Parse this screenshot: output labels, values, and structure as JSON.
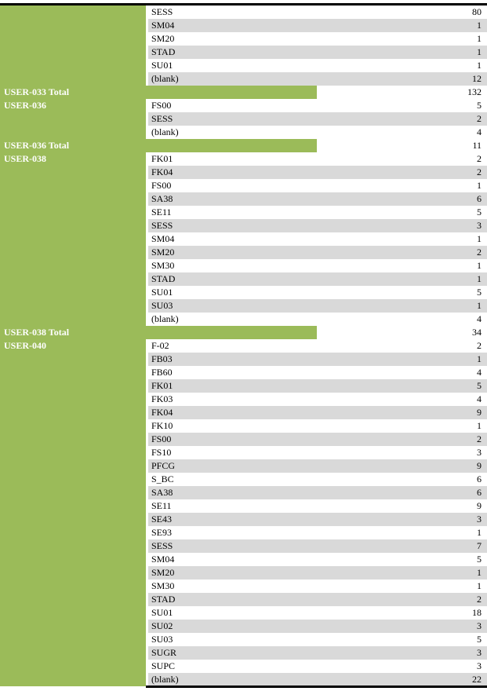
{
  "rows": [
    {
      "kind": "item",
      "label": "",
      "code": "SESS",
      "value": "80"
    },
    {
      "kind": "item",
      "label": "",
      "code": "SM04",
      "value": "1"
    },
    {
      "kind": "item",
      "label": "",
      "code": "SM20",
      "value": "1"
    },
    {
      "kind": "item",
      "label": "",
      "code": "STAD",
      "value": "1"
    },
    {
      "kind": "item",
      "label": "",
      "code": "SU01",
      "value": "1"
    },
    {
      "kind": "item",
      "label": "",
      "code": "(blank)",
      "value": "12"
    },
    {
      "kind": "total",
      "label": "USER-033 Total",
      "code": "",
      "value": "132"
    },
    {
      "kind": "item",
      "label": "USER-036",
      "code": "FS00",
      "value": "5"
    },
    {
      "kind": "item",
      "label": "",
      "code": "SESS",
      "value": "2"
    },
    {
      "kind": "item",
      "label": "",
      "code": "(blank)",
      "value": "4"
    },
    {
      "kind": "total",
      "label": "USER-036 Total",
      "code": "",
      "value": "11"
    },
    {
      "kind": "item",
      "label": "USER-038",
      "code": "FK01",
      "value": "2"
    },
    {
      "kind": "item",
      "label": "",
      "code": "FK04",
      "value": "2"
    },
    {
      "kind": "item",
      "label": "",
      "code": "FS00",
      "value": "1"
    },
    {
      "kind": "item",
      "label": "",
      "code": "SA38",
      "value": "6"
    },
    {
      "kind": "item",
      "label": "",
      "code": "SE11",
      "value": "5"
    },
    {
      "kind": "item",
      "label": "",
      "code": "SESS",
      "value": "3"
    },
    {
      "kind": "item",
      "label": "",
      "code": "SM04",
      "value": "1"
    },
    {
      "kind": "item",
      "label": "",
      "code": "SM20",
      "value": "2"
    },
    {
      "kind": "item",
      "label": "",
      "code": "SM30",
      "value": "1"
    },
    {
      "kind": "item",
      "label": "",
      "code": "STAD",
      "value": "1"
    },
    {
      "kind": "item",
      "label": "",
      "code": "SU01",
      "value": "5"
    },
    {
      "kind": "item",
      "label": "",
      "code": "SU03",
      "value": "1"
    },
    {
      "kind": "item",
      "label": "",
      "code": "(blank)",
      "value": "4"
    },
    {
      "kind": "total",
      "label": "USER-038 Total",
      "code": "",
      "value": "34"
    },
    {
      "kind": "item",
      "label": "USER-040",
      "code": "F-02",
      "value": "2"
    },
    {
      "kind": "item",
      "label": "",
      "code": "FB03",
      "value": "1"
    },
    {
      "kind": "item",
      "label": "",
      "code": "FB60",
      "value": "4"
    },
    {
      "kind": "item",
      "label": "",
      "code": "FK01",
      "value": "5"
    },
    {
      "kind": "item",
      "label": "",
      "code": "FK03",
      "value": "4"
    },
    {
      "kind": "item",
      "label": "",
      "code": "FK04",
      "value": "9"
    },
    {
      "kind": "item",
      "label": "",
      "code": "FK10",
      "value": "1"
    },
    {
      "kind": "item",
      "label": "",
      "code": "FS00",
      "value": "2"
    },
    {
      "kind": "item",
      "label": "",
      "code": "FS10",
      "value": "3"
    },
    {
      "kind": "item",
      "label": "",
      "code": "PFCG",
      "value": "9"
    },
    {
      "kind": "item",
      "label": "",
      "code": "S_BC",
      "value": "6"
    },
    {
      "kind": "item",
      "label": "",
      "code": "SA38",
      "value": "6"
    },
    {
      "kind": "item",
      "label": "",
      "code": "SE11",
      "value": "9"
    },
    {
      "kind": "item",
      "label": "",
      "code": "SE43",
      "value": "3"
    },
    {
      "kind": "item",
      "label": "",
      "code": "SE93",
      "value": "1"
    },
    {
      "kind": "item",
      "label": "",
      "code": "SESS",
      "value": "7"
    },
    {
      "kind": "item",
      "label": "",
      "code": "SM04",
      "value": "5"
    },
    {
      "kind": "item",
      "label": "",
      "code": "SM20",
      "value": "1"
    },
    {
      "kind": "item",
      "label": "",
      "code": "SM30",
      "value": "1"
    },
    {
      "kind": "item",
      "label": "",
      "code": "STAD",
      "value": "2"
    },
    {
      "kind": "item",
      "label": "",
      "code": "SU01",
      "value": "18"
    },
    {
      "kind": "item",
      "label": "",
      "code": "SU02",
      "value": "3"
    },
    {
      "kind": "item",
      "label": "",
      "code": "SU03",
      "value": "5"
    },
    {
      "kind": "item",
      "label": "",
      "code": "SUGR",
      "value": "3"
    },
    {
      "kind": "item",
      "label": "",
      "code": "SUPC",
      "value": "3"
    },
    {
      "kind": "item",
      "label": "",
      "code": "(blank)",
      "value": "22"
    }
  ],
  "colors": {
    "accent": "#9bbb59",
    "band": "#d9d9d9",
    "rule": "#000000"
  }
}
